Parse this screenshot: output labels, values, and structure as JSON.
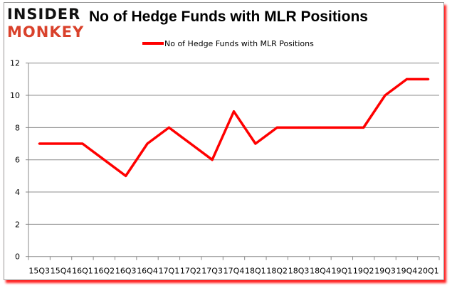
{
  "logo": {
    "line1": "INSIDER",
    "line2": "MONKEY"
  },
  "chart_data": {
    "type": "line",
    "title": "No of Hedge Funds with MLR Positions",
    "categories": [
      "15Q3",
      "15Q4",
      "16Q1",
      "16Q2",
      "16Q3",
      "16Q4",
      "17Q1",
      "17Q2",
      "17Q3",
      "17Q4",
      "18Q1",
      "18Q2",
      "18Q3",
      "18Q4",
      "19Q1",
      "19Q2",
      "19Q3",
      "19Q4",
      "20Q1"
    ],
    "series": [
      {
        "name": "No of Hedge Funds with MLR Positions",
        "values": [
          7,
          7,
          7,
          6,
          5,
          7,
          8,
          7,
          6,
          9,
          7,
          8,
          8,
          8,
          8,
          8,
          10,
          11,
          11
        ],
        "color": "#ff0000"
      }
    ],
    "ylim": [
      0,
      12
    ],
    "yticks": [
      0,
      2,
      4,
      6,
      8,
      10,
      12
    ],
    "grid": true,
    "legend": "top"
  }
}
